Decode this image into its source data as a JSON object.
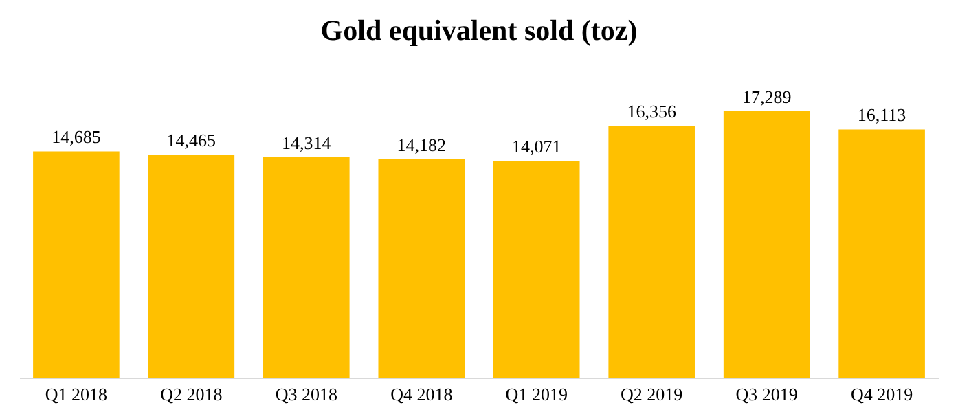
{
  "chart_data": {
    "type": "bar",
    "title": "Gold equivalent sold (toz)",
    "categories": [
      "Q1 2018",
      "Q2 2018",
      "Q3 2018",
      "Q4 2018",
      "Q1 2019",
      "Q2 2019",
      "Q3 2019",
      "Q4 2019"
    ],
    "values": [
      14685,
      14465,
      14314,
      14182,
      14071,
      16356,
      17289,
      16113
    ],
    "value_labels": [
      "14,685",
      "14,465",
      "14,314",
      "14,182",
      "14,071",
      "16,356",
      "17,289",
      "16,113"
    ],
    "color": "#ffc000"
  }
}
